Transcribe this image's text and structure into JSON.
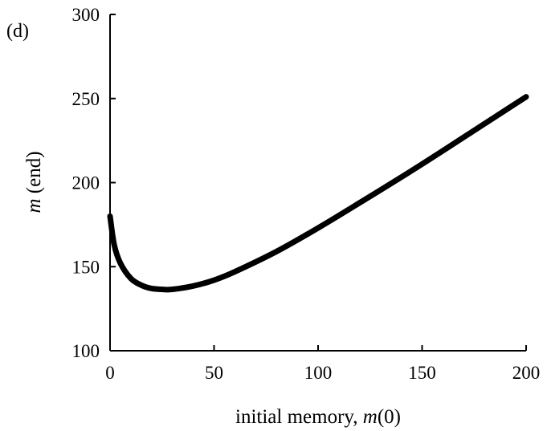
{
  "chart_data": {
    "type": "line",
    "panel_label": "(d)",
    "title": "",
    "xlabel": "initial memory, m(0)",
    "xlabel_parts": {
      "prefix": "initial memory, ",
      "var": "m",
      "suffix": "(0)"
    },
    "ylabel": "m (end)",
    "ylabel_parts": {
      "var": "m",
      "suffix": " (end)"
    },
    "xlim": [
      0,
      200
    ],
    "ylim": [
      100,
      300
    ],
    "x_ticks": [
      0,
      50,
      100,
      150,
      200
    ],
    "x_tick_labels": [
      "0",
      "50",
      "100",
      "150",
      "200"
    ],
    "y_ticks": [
      100,
      150,
      200,
      250,
      300
    ],
    "y_tick_labels": [
      "100",
      "150",
      "200",
      "250",
      "300"
    ],
    "grid": false,
    "series": [
      {
        "x": [
          0,
          2,
          5,
          10,
          15,
          20,
          25,
          30,
          40,
          50,
          60,
          80,
          100,
          120,
          150,
          180,
          200
        ],
        "y": [
          180,
          163,
          152,
          143,
          139,
          137,
          136.5,
          136.5,
          138.5,
          142,
          147,
          159,
          173,
          188,
          211,
          235,
          251
        ]
      }
    ]
  }
}
